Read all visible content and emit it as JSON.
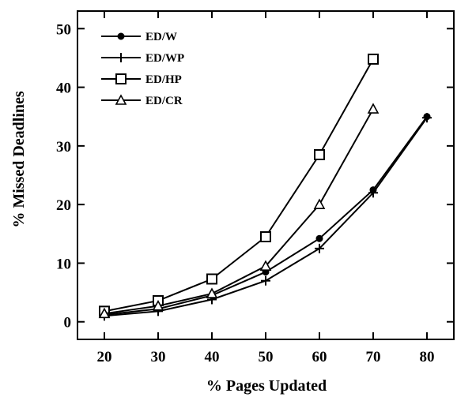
{
  "chart_data": {
    "type": "line",
    "xlabel": "% Pages Updated",
    "ylabel": "% Missed Deadlines",
    "xlim": [
      15,
      85
    ],
    "ylim": [
      -3,
      53
    ],
    "xticks": [
      "20",
      "30",
      "40",
      "50",
      "60",
      "70",
      "80"
    ],
    "yticks": [
      "0",
      "10",
      "20",
      "30",
      "40",
      "50"
    ],
    "legend_position": "top-left",
    "grid": false,
    "series": [
      {
        "name": "ED/W",
        "marker": "filled-circle",
        "x": [
          20,
          30,
          40,
          50,
          60,
          70,
          80
        ],
        "y": [
          1.2,
          2.2,
          4.5,
          8.5,
          14.2,
          22.5,
          35.0
        ]
      },
      {
        "name": "ED/WP",
        "marker": "plus",
        "x": [
          20,
          30,
          40,
          50,
          60,
          70,
          80
        ],
        "y": [
          1.0,
          1.8,
          3.8,
          7.0,
          12.5,
          22.0,
          34.8
        ]
      },
      {
        "name": "ED/HP",
        "marker": "open-square",
        "x": [
          20,
          30,
          40,
          50,
          60,
          70
        ],
        "y": [
          1.8,
          3.6,
          7.3,
          14.5,
          28.5,
          44.8
        ]
      },
      {
        "name": "ED/CR",
        "marker": "open-triangle",
        "x": [
          20,
          30,
          40,
          50,
          60,
          70
        ],
        "y": [
          1.4,
          2.7,
          4.8,
          9.5,
          20.0,
          36.3
        ]
      }
    ]
  }
}
